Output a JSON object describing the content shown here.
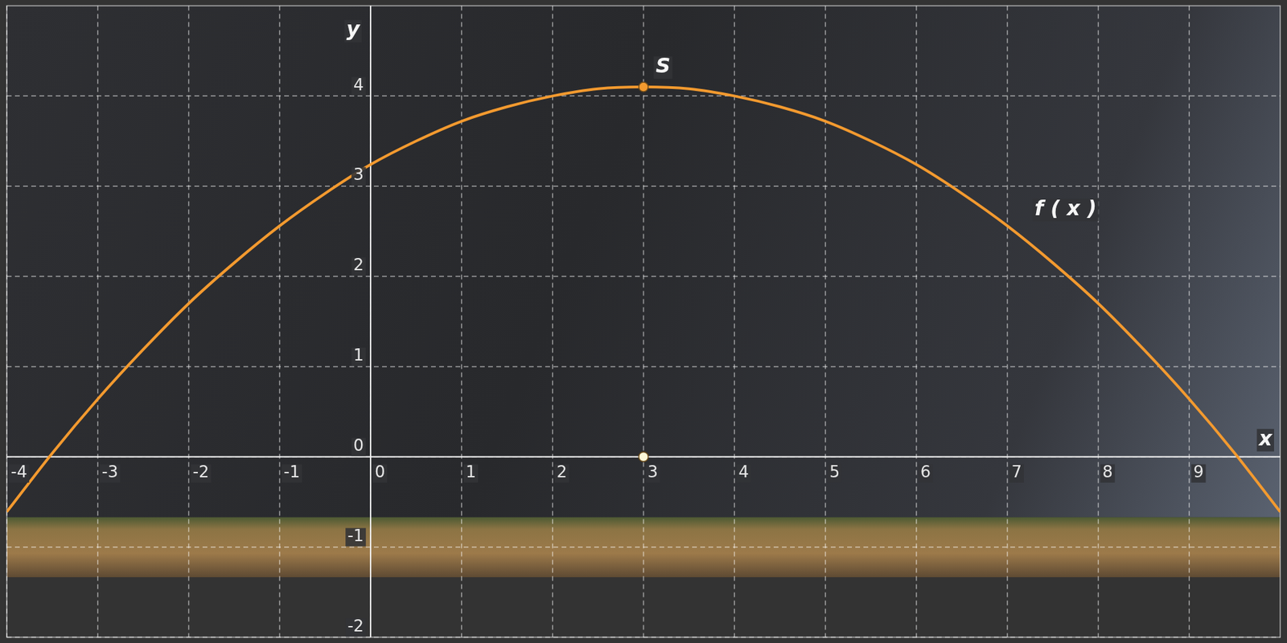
{
  "chart_data": {
    "type": "line",
    "x_label": "x",
    "y_label": "y",
    "x": [
      -4,
      -3.5,
      -3,
      -2.5,
      -2,
      -1.5,
      -1,
      -0.5,
      0,
      0.5,
      1,
      1.5,
      2,
      2.5,
      3,
      3.5,
      4,
      4.5,
      5,
      5.5,
      6,
      6.5,
      7,
      7.5,
      8,
      8.5,
      9,
      9.5,
      10
    ],
    "series": [
      {
        "color": "#f39a2f",
        "values": [
          -0.61,
          0.04,
          0.64,
          1.19,
          1.7,
          2.15,
          2.56,
          2.92,
          3.24,
          3.5,
          3.72,
          3.88,
          4.0,
          4.08,
          4.1,
          4.08,
          4.0,
          3.88,
          3.72,
          3.5,
          3.24,
          2.92,
          2.56,
          2.15,
          1.7,
          1.19,
          0.64,
          0.04,
          -0.61
        ]
      }
    ],
    "points": [
      {
        "label": "S",
        "x": 3,
        "y": 4.1,
        "color": "#f39a2f"
      },
      {
        "x": 3,
        "y": 0,
        "color": "#fbf7d8"
      }
    ],
    "annotations": [
      {
        "text": "f ( x )",
        "x": 7.64,
        "y": 2.74
      }
    ],
    "xlim": [
      -4,
      10
    ],
    "ylim": [
      -2,
      5
    ],
    "xticks": [
      -4,
      -3,
      -2,
      -1,
      0,
      1,
      2,
      3,
      4,
      5,
      6,
      7,
      8,
      9
    ],
    "yticks": [
      -2,
      -1,
      0,
      1,
      2,
      3,
      4
    ],
    "grid": true
  }
}
